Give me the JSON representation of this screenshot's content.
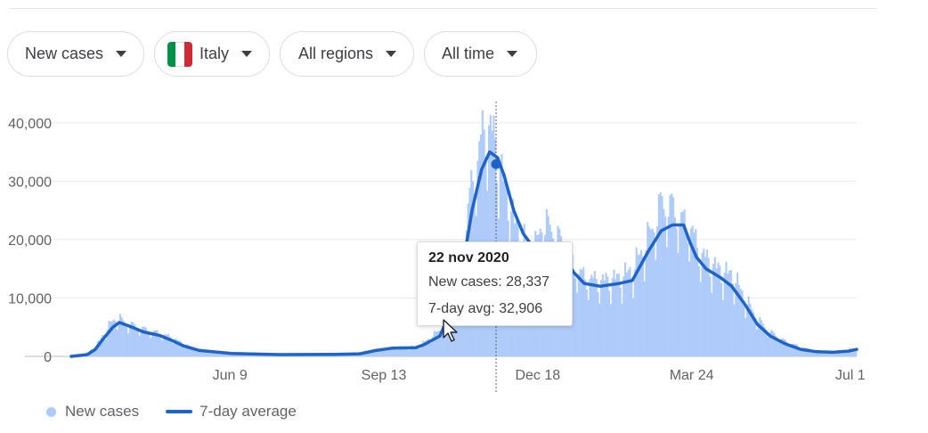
{
  "filters": {
    "metric": "New cases",
    "country": "Italy",
    "region": "All regions",
    "period": "All time"
  },
  "colors": {
    "bars": "#aecbfa",
    "line": "#1e64c8",
    "flag": [
      "#009246",
      "#ffffff",
      "#ce2b37"
    ]
  },
  "tooltip": {
    "date": "22 nov 2020",
    "new_cases": "New cases: 28,337",
    "avg": "7-day avg: 32,906"
  },
  "legend": {
    "bars": "New cases",
    "line": "7-day average"
  },
  "chart_data": {
    "type": "bar",
    "title": "",
    "xlabel": "",
    "ylabel": "",
    "ylim": [
      0,
      45000
    ],
    "y_ticks": [
      0,
      10000,
      20000,
      30000,
      40000
    ],
    "y_tick_labels": [
      "0",
      "10,000",
      "20,000",
      "30,000",
      "40,000"
    ],
    "x_tick_labels": [
      "Jun 9",
      "Sep 13",
      "Dec 18",
      "Mar 24",
      "Jul 1"
    ],
    "x_tick_days": [
      99,
      195,
      291,
      387,
      486
    ],
    "x_range_days": [
      0,
      490
    ],
    "x_range_dates": [
      "2020-03-02",
      "2021-07-05"
    ],
    "grid": true,
    "legend_position": "bottom-left",
    "highlight": {
      "date": "2020-11-22",
      "day": 265,
      "new_cases": 28337,
      "avg": 32906
    },
    "series": [
      {
        "name": "7-day average",
        "kind": "line",
        "points": [
          [
            0,
            0
          ],
          [
            10,
            300
          ],
          [
            15,
            1200
          ],
          [
            20,
            3000
          ],
          [
            26,
            5000
          ],
          [
            30,
            5800
          ],
          [
            36,
            5200
          ],
          [
            45,
            4200
          ],
          [
            55,
            3600
          ],
          [
            63,
            2700
          ],
          [
            70,
            1800
          ],
          [
            80,
            1000
          ],
          [
            100,
            500
          ],
          [
            130,
            300
          ],
          [
            165,
            350
          ],
          [
            180,
            450
          ],
          [
            190,
            1000
          ],
          [
            200,
            1400
          ],
          [
            215,
            1500
          ],
          [
            220,
            2000
          ],
          [
            230,
            3500
          ],
          [
            237,
            8000
          ],
          [
            244,
            15000
          ],
          [
            250,
            25000
          ],
          [
            256,
            32000
          ],
          [
            261,
            35000
          ],
          [
            266,
            34000
          ],
          [
            270,
            31000
          ],
          [
            276,
            25000
          ],
          [
            282,
            21000
          ],
          [
            290,
            18000
          ],
          [
            300,
            18500
          ],
          [
            307,
            17500
          ],
          [
            313,
            14500
          ],
          [
            320,
            12500
          ],
          [
            330,
            12000
          ],
          [
            342,
            12500
          ],
          [
            350,
            13000
          ],
          [
            360,
            18000
          ],
          [
            368,
            21500
          ],
          [
            375,
            22500
          ],
          [
            382,
            22500
          ],
          [
            386,
            19500
          ],
          [
            390,
            17000
          ],
          [
            396,
            15000
          ],
          [
            405,
            13500
          ],
          [
            412,
            12000
          ],
          [
            420,
            9000
          ],
          [
            428,
            5500
          ],
          [
            436,
            3500
          ],
          [
            445,
            2200
          ],
          [
            455,
            1200
          ],
          [
            465,
            800
          ],
          [
            475,
            700
          ],
          [
            485,
            900
          ],
          [
            490,
            1200
          ]
        ]
      },
      {
        "name": "New cases",
        "kind": "bar",
        "points": [
          [
            0,
            100
          ],
          [
            10,
            600
          ],
          [
            15,
            1800
          ],
          [
            20,
            3800
          ],
          [
            24,
            5500
          ],
          [
            28,
            6500
          ],
          [
            34,
            5500
          ],
          [
            45,
            4500
          ],
          [
            55,
            3800
          ],
          [
            63,
            3000
          ],
          [
            70,
            2000
          ],
          [
            80,
            1000
          ],
          [
            100,
            400
          ],
          [
            130,
            250
          ],
          [
            165,
            300
          ],
          [
            180,
            400
          ],
          [
            190,
            1100
          ],
          [
            200,
            1500
          ],
          [
            215,
            1600
          ],
          [
            220,
            2400
          ],
          [
            230,
            4500
          ],
          [
            237,
            10000
          ],
          [
            244,
            18000
          ],
          [
            250,
            30000
          ],
          [
            254,
            34000
          ],
          [
            258,
            39000
          ],
          [
            262,
            37000
          ],
          [
            266,
            33000
          ],
          [
            270,
            28000
          ],
          [
            276,
            22000
          ],
          [
            282,
            19000
          ],
          [
            288,
            17000
          ],
          [
            293,
            22000
          ],
          [
            300,
            21000
          ],
          [
            307,
            18000
          ],
          [
            313,
            15000
          ],
          [
            320,
            13000
          ],
          [
            330,
            12500
          ],
          [
            342,
            13000
          ],
          [
            350,
            14500
          ],
          [
            360,
            20000
          ],
          [
            368,
            25500
          ],
          [
            375,
            24500
          ],
          [
            382,
            22000
          ],
          [
            386,
            21500
          ],
          [
            390,
            18000
          ],
          [
            396,
            16000
          ],
          [
            405,
            14000
          ],
          [
            412,
            13500
          ],
          [
            420,
            9500
          ],
          [
            428,
            6000
          ],
          [
            436,
            4000
          ],
          [
            445,
            2500
          ],
          [
            455,
            1500
          ],
          [
            465,
            900
          ],
          [
            475,
            800
          ],
          [
            485,
            1200
          ],
          [
            490,
            1300
          ]
        ]
      }
    ]
  }
}
